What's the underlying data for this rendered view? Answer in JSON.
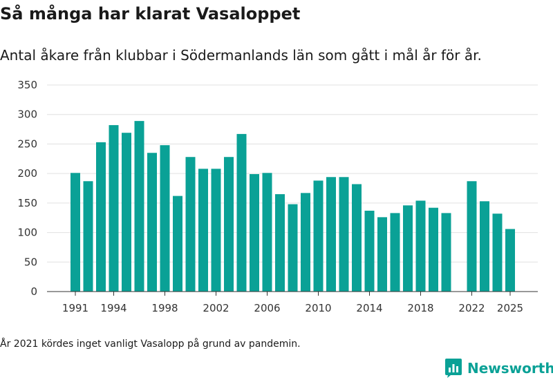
{
  "title": "Så många har klarat Vasaloppet",
  "subtitle": "Antal åkare från klubbar i Södermanlands län som gått i mål år för år.",
  "footnote": "År 2021 kördes inget vanligt Vasalopp på grund av pandemin.",
  "brand": {
    "name": "Newsworthy",
    "icon": "newsworthy-logo-icon"
  },
  "colors": {
    "bar": "#0aa196",
    "grid": "#e0e0e0",
    "axis": "#333333",
    "brand": "#0aa196"
  },
  "chart_data": {
    "type": "bar",
    "title": "Så många har klarat Vasaloppet",
    "xlabel": "",
    "ylabel": "",
    "ylim": [
      0,
      350
    ],
    "yticks": [
      0,
      50,
      100,
      150,
      200,
      250,
      300,
      350
    ],
    "xticks": [
      1991,
      1994,
      1998,
      2002,
      2006,
      2010,
      2014,
      2018,
      2022,
      2025
    ],
    "grid": true,
    "x": [
      1991,
      1992,
      1993,
      1994,
      1995,
      1996,
      1997,
      1998,
      1999,
      2000,
      2001,
      2002,
      2003,
      2004,
      2005,
      2006,
      2007,
      2008,
      2009,
      2010,
      2011,
      2012,
      2013,
      2014,
      2015,
      2016,
      2017,
      2018,
      2019,
      2020,
      2021,
      2022,
      2023,
      2024,
      2025
    ],
    "values": [
      201,
      187,
      253,
      282,
      269,
      289,
      235,
      248,
      162,
      228,
      208,
      208,
      228,
      267,
      199,
      201,
      165,
      148,
      167,
      188,
      194,
      194,
      182,
      137,
      126,
      133,
      146,
      154,
      142,
      133,
      null,
      187,
      153,
      132,
      106
    ]
  }
}
